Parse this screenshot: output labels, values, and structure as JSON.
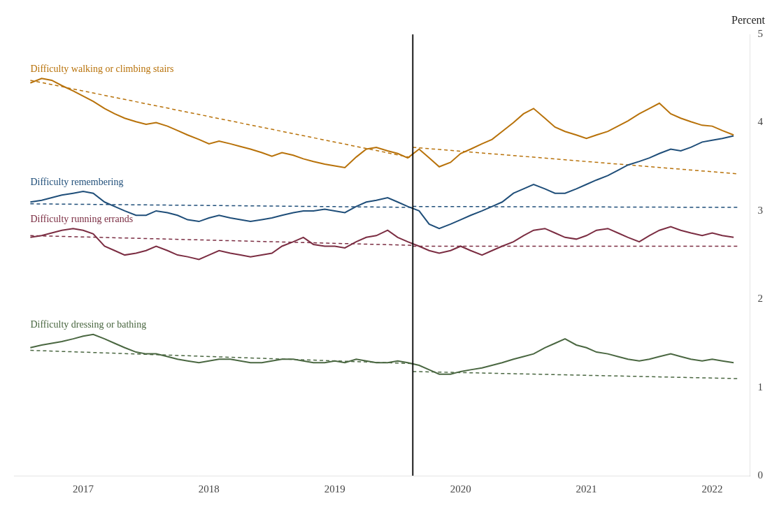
{
  "chart_data": {
    "type": "line",
    "title": "Percent",
    "xlim": [
      2016.45,
      2022.3
    ],
    "ylim": [
      0,
      5
    ],
    "xticks": [
      2017,
      2018,
      2019,
      2020,
      2021,
      2022
    ],
    "yticks": [
      0,
      1,
      2,
      3,
      4,
      5
    ],
    "grid": false,
    "x": [
      2016.58,
      2016.67,
      2016.75,
      2016.83,
      2016.92,
      2017.0,
      2017.08,
      2017.17,
      2017.25,
      2017.33,
      2017.42,
      2017.5,
      2017.58,
      2017.67,
      2017.75,
      2017.83,
      2017.92,
      2018.0,
      2018.08,
      2018.17,
      2018.25,
      2018.33,
      2018.42,
      2018.5,
      2018.58,
      2018.67,
      2018.75,
      2018.83,
      2018.92,
      2019.0,
      2019.08,
      2019.17,
      2019.25,
      2019.33,
      2019.42,
      2019.5,
      2019.58,
      2019.67,
      2019.75,
      2019.83,
      2019.92,
      2020.0,
      2020.08,
      2020.17,
      2020.25,
      2020.33,
      2020.42,
      2020.5,
      2020.58,
      2020.67,
      2020.75,
      2020.83,
      2020.92,
      2021.0,
      2021.08,
      2021.17,
      2021.25,
      2021.33,
      2021.42,
      2021.5,
      2021.58,
      2021.67,
      2021.75,
      2021.83,
      2021.92,
      2022.0,
      2022.08,
      2022.17
    ],
    "series": [
      {
        "name": "Difficulty walking or climbing stairs",
        "color": "#b8720a",
        "line_style": "solid",
        "values": [
          4.45,
          4.5,
          4.48,
          4.42,
          4.36,
          4.3,
          4.24,
          4.16,
          4.1,
          4.05,
          4.01,
          3.98,
          4.0,
          3.96,
          3.91,
          3.86,
          3.81,
          3.76,
          3.79,
          3.76,
          3.73,
          3.7,
          3.66,
          3.62,
          3.66,
          3.63,
          3.59,
          3.56,
          3.53,
          3.51,
          3.49,
          3.61,
          3.7,
          3.72,
          3.68,
          3.65,
          3.6,
          3.7,
          3.6,
          3.5,
          3.55,
          3.65,
          3.7,
          3.76,
          3.81,
          3.9,
          4.0,
          4.1,
          4.16,
          4.05,
          3.95,
          3.9,
          3.86,
          3.82,
          3.86,
          3.9,
          3.96,
          4.02,
          4.1,
          4.16,
          4.22,
          4.1,
          4.05,
          4.01,
          3.97,
          3.96,
          3.91,
          3.86
        ]
      },
      {
        "name": "Difficulty remembering",
        "color": "#1f4e79",
        "line_style": "solid",
        "values": [
          3.1,
          3.12,
          3.15,
          3.18,
          3.2,
          3.22,
          3.2,
          3.1,
          3.05,
          3.0,
          2.95,
          2.95,
          3.0,
          2.98,
          2.95,
          2.9,
          2.88,
          2.92,
          2.95,
          2.92,
          2.9,
          2.88,
          2.9,
          2.92,
          2.95,
          2.98,
          3.0,
          3.0,
          3.02,
          3.0,
          2.98,
          3.05,
          3.1,
          3.12,
          3.15,
          3.1,
          3.05,
          3.0,
          2.85,
          2.8,
          2.85,
          2.9,
          2.95,
          3.0,
          3.05,
          3.1,
          3.2,
          3.25,
          3.3,
          3.25,
          3.2,
          3.2,
          3.25,
          3.3,
          3.35,
          3.4,
          3.46,
          3.52,
          3.56,
          3.6,
          3.65,
          3.7,
          3.68,
          3.72,
          3.78,
          3.8,
          3.82,
          3.85
        ]
      },
      {
        "name": "Difficulty running errands",
        "color": "#7b2d42",
        "line_style": "solid",
        "values": [
          2.7,
          2.72,
          2.75,
          2.78,
          2.8,
          2.78,
          2.74,
          2.6,
          2.55,
          2.5,
          2.52,
          2.55,
          2.6,
          2.55,
          2.5,
          2.48,
          2.45,
          2.5,
          2.55,
          2.52,
          2.5,
          2.48,
          2.5,
          2.52,
          2.6,
          2.65,
          2.7,
          2.62,
          2.6,
          2.6,
          2.58,
          2.65,
          2.7,
          2.72,
          2.78,
          2.7,
          2.65,
          2.6,
          2.55,
          2.52,
          2.55,
          2.6,
          2.55,
          2.5,
          2.55,
          2.6,
          2.65,
          2.72,
          2.78,
          2.8,
          2.75,
          2.7,
          2.68,
          2.72,
          2.78,
          2.8,
          2.75,
          2.7,
          2.65,
          2.72,
          2.78,
          2.82,
          2.78,
          2.75,
          2.72,
          2.75,
          2.72,
          2.7
        ]
      },
      {
        "name": "Difficulty dressing or bathing",
        "color": "#4a6741",
        "line_style": "solid",
        "values": [
          1.45,
          1.48,
          1.5,
          1.52,
          1.55,
          1.58,
          1.6,
          1.55,
          1.5,
          1.45,
          1.4,
          1.38,
          1.38,
          1.35,
          1.32,
          1.3,
          1.28,
          1.3,
          1.32,
          1.32,
          1.3,
          1.28,
          1.28,
          1.3,
          1.32,
          1.32,
          1.3,
          1.28,
          1.28,
          1.3,
          1.28,
          1.32,
          1.3,
          1.28,
          1.28,
          1.3,
          1.28,
          1.25,
          1.2,
          1.15,
          1.15,
          1.18,
          1.2,
          1.22,
          1.25,
          1.28,
          1.32,
          1.35,
          1.38,
          1.45,
          1.5,
          1.55,
          1.48,
          1.45,
          1.4,
          1.38,
          1.35,
          1.32,
          1.3,
          1.32,
          1.35,
          1.38,
          1.35,
          1.32,
          1.3,
          1.32,
          1.3,
          1.28
        ]
      },
      {
        "color": "#b8720a",
        "line_style": "dashed",
        "x": [
          2016.58,
          2019.62
        ],
        "values": [
          4.48,
          3.6
        ]
      },
      {
        "color": "#b8720a",
        "line_style": "dashed",
        "x": [
          2019.62,
          2022.2
        ],
        "values": [
          3.72,
          3.42
        ]
      },
      {
        "color": "#1f4e79",
        "line_style": "dashed",
        "x": [
          2016.58,
          2019.62
        ],
        "values": [
          3.08,
          3.04
        ]
      },
      {
        "color": "#1f4e79",
        "line_style": "dashed",
        "x": [
          2019.62,
          2022.2
        ],
        "values": [
          3.05,
          3.04
        ]
      },
      {
        "color": "#7b2d42",
        "line_style": "dashed",
        "x": [
          2016.58,
          2019.62
        ],
        "values": [
          2.72,
          2.61
        ]
      },
      {
        "color": "#7b2d42",
        "line_style": "dashed",
        "x": [
          2019.62,
          2022.2
        ],
        "values": [
          2.6,
          2.6
        ]
      },
      {
        "color": "#4a6741",
        "line_style": "dashed",
        "x": [
          2016.58,
          2019.62
        ],
        "values": [
          1.42,
          1.27
        ]
      },
      {
        "color": "#4a6741",
        "line_style": "dashed",
        "x": [
          2019.62,
          2022.2
        ],
        "values": [
          1.18,
          1.1
        ]
      }
    ],
    "vertical_line": {
      "x": 2019.62,
      "color": "#000000"
    }
  }
}
